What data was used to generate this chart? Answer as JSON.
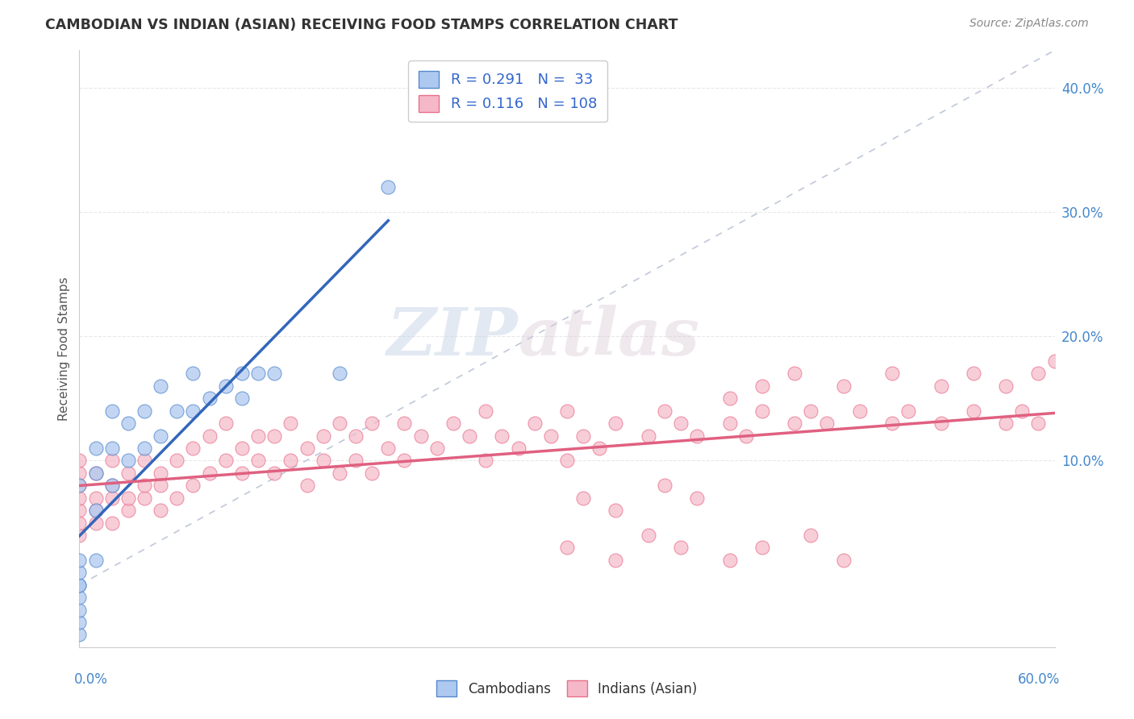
{
  "title": "CAMBODIAN VS INDIAN (ASIAN) RECEIVING FOOD STAMPS CORRELATION CHART",
  "source": "Source: ZipAtlas.com",
  "ylabel": "Receiving Food Stamps",
  "ylabel_right_vals": [
    0.4,
    0.3,
    0.2,
    0.1
  ],
  "xmin": 0.0,
  "xmax": 0.6,
  "ymin": -0.05,
  "ymax": 0.43,
  "cambodian_fill": "#aec9ef",
  "cambodian_edge": "#5588cc",
  "indian_fill": "#f5b8c8",
  "indian_edge": "#e8708a",
  "cambodian_line_color": "#3366bb",
  "indian_line_color": "#e06080",
  "ref_line_color": "#c0c8d8",
  "R_cambodian": 0.291,
  "N_cambodian": 33,
  "R_indian": 0.116,
  "N_indian": 108,
  "watermark_zip": "ZIP",
  "watermark_atlas": "atlas",
  "legend_label_cambodian": "Cambodians",
  "legend_label_indian": "Indians (Asian)",
  "background_color": "#ffffff",
  "grid_color": "#e8e8e8",
  "title_color": "#333333",
  "tick_color": "#4488cc",
  "camb_x": [
    0.0,
    0.0,
    0.0,
    0.0,
    0.0,
    0.0,
    0.0,
    0.0,
    0.0,
    0.01,
    0.01,
    0.01,
    0.01,
    0.02,
    0.02,
    0.02,
    0.03,
    0.03,
    0.04,
    0.04,
    0.05,
    0.05,
    0.06,
    0.07,
    0.07,
    0.08,
    0.09,
    0.1,
    0.1,
    0.11,
    0.12,
    0.16,
    0.19
  ],
  "camb_y": [
    -0.04,
    -0.03,
    -0.02,
    -0.01,
    0.0,
    0.0,
    0.01,
    0.02,
    0.08,
    0.02,
    0.06,
    0.09,
    0.11,
    0.08,
    0.11,
    0.14,
    0.1,
    0.13,
    0.11,
    0.14,
    0.12,
    0.16,
    0.14,
    0.14,
    0.17,
    0.15,
    0.16,
    0.15,
    0.17,
    0.17,
    0.17,
    0.17,
    0.32
  ],
  "ind_x": [
    0.0,
    0.0,
    0.0,
    0.0,
    0.0,
    0.0,
    0.0,
    0.01,
    0.01,
    0.01,
    0.01,
    0.02,
    0.02,
    0.02,
    0.02,
    0.03,
    0.03,
    0.03,
    0.04,
    0.04,
    0.04,
    0.05,
    0.05,
    0.05,
    0.06,
    0.06,
    0.07,
    0.07,
    0.08,
    0.08,
    0.09,
    0.09,
    0.1,
    0.1,
    0.11,
    0.11,
    0.12,
    0.12,
    0.13,
    0.13,
    0.14,
    0.14,
    0.15,
    0.15,
    0.16,
    0.16,
    0.17,
    0.17,
    0.18,
    0.18,
    0.19,
    0.2,
    0.2,
    0.21,
    0.22,
    0.23,
    0.24,
    0.25,
    0.25,
    0.26,
    0.27,
    0.28,
    0.29,
    0.3,
    0.3,
    0.31,
    0.32,
    0.33,
    0.35,
    0.36,
    0.37,
    0.38,
    0.4,
    0.41,
    0.42,
    0.44,
    0.45,
    0.46,
    0.48,
    0.5,
    0.51,
    0.53,
    0.55,
    0.57,
    0.58,
    0.59,
    0.6,
    0.31,
    0.33,
    0.36,
    0.38,
    0.4,
    0.42,
    0.44,
    0.47,
    0.5,
    0.53,
    0.55,
    0.57,
    0.59,
    0.3,
    0.33,
    0.35,
    0.37,
    0.4,
    0.42,
    0.45,
    0.47
  ],
  "ind_y": [
    0.04,
    0.05,
    0.06,
    0.07,
    0.08,
    0.09,
    0.1,
    0.05,
    0.06,
    0.07,
    0.09,
    0.05,
    0.07,
    0.08,
    0.1,
    0.06,
    0.07,
    0.09,
    0.07,
    0.08,
    0.1,
    0.06,
    0.08,
    0.09,
    0.07,
    0.1,
    0.08,
    0.11,
    0.09,
    0.12,
    0.1,
    0.13,
    0.09,
    0.11,
    0.1,
    0.12,
    0.09,
    0.12,
    0.1,
    0.13,
    0.08,
    0.11,
    0.1,
    0.12,
    0.09,
    0.13,
    0.1,
    0.12,
    0.09,
    0.13,
    0.11,
    0.1,
    0.13,
    0.12,
    0.11,
    0.13,
    0.12,
    0.1,
    0.14,
    0.12,
    0.11,
    0.13,
    0.12,
    0.1,
    0.14,
    0.12,
    0.11,
    0.13,
    0.12,
    0.14,
    0.13,
    0.12,
    0.13,
    0.12,
    0.14,
    0.13,
    0.14,
    0.13,
    0.14,
    0.13,
    0.14,
    0.13,
    0.14,
    0.13,
    0.14,
    0.13,
    0.18,
    0.07,
    0.06,
    0.08,
    0.07,
    0.15,
    0.16,
    0.17,
    0.16,
    0.17,
    0.16,
    0.17,
    0.16,
    0.17,
    0.03,
    0.02,
    0.04,
    0.03,
    0.02,
    0.03,
    0.04,
    0.02
  ]
}
